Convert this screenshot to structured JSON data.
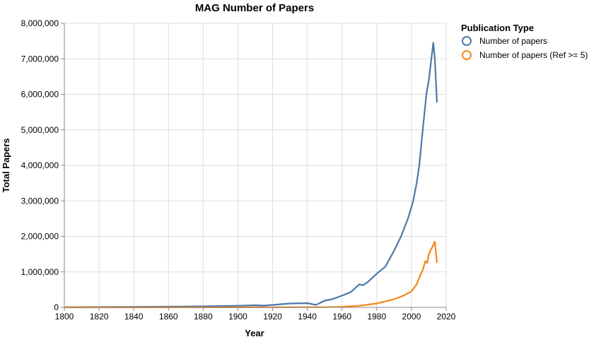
{
  "chart_data": {
    "type": "line",
    "title": "MAG Number of Papers",
    "xlabel": "Year",
    "ylabel": "Total Papers",
    "xlim": [
      1800,
      2020
    ],
    "ylim": [
      0,
      8000000
    ],
    "grid": true,
    "x_ticks": [
      "1800",
      "1820",
      "1840",
      "1860",
      "1880",
      "1900",
      "1920",
      "1940",
      "1960",
      "1980",
      "2000",
      "2020"
    ],
    "y_ticks": [
      "0",
      "1,000,000",
      "2,000,000",
      "3,000,000",
      "4,000,000",
      "5,000,000",
      "6,000,000",
      "7,000,000",
      "8,000,000"
    ],
    "legend": {
      "title": "Publication Type",
      "position": "right"
    },
    "series": [
      {
        "name": "Number of papers",
        "color": "#4c78a8",
        "x": [
          1800,
          1820,
          1840,
          1860,
          1880,
          1900,
          1910,
          1915,
          1920,
          1930,
          1940,
          1943,
          1945,
          1950,
          1955,
          1960,
          1965,
          1970,
          1972,
          1975,
          1980,
          1985,
          1990,
          1994,
          1998,
          2001,
          2003,
          2004.5,
          2006.5,
          2008,
          2008.6,
          2010,
          2011,
          2012.6,
          2013.5,
          2014.7
        ],
        "y": [
          5000,
          10000,
          15000,
          20000,
          30000,
          45000,
          60000,
          50000,
          70000,
          110000,
          120000,
          90000,
          70000,
          190000,
          240000,
          330000,
          430000,
          650000,
          620000,
          720000,
          950000,
          1150000,
          1600000,
          2000000,
          2500000,
          3000000,
          3500000,
          4000000,
          5000000,
          5700000,
          6000000,
          6400000,
          6800000,
          7450000,
          7000000,
          5770000
        ]
      },
      {
        "name": "Number of papers (Ref >= 5)",
        "color": "#f58518",
        "x": [
          1800,
          1900,
          1950,
          1960,
          1970,
          1980,
          1990,
          1995,
          2000,
          2003,
          2005,
          2006.5,
          2008,
          2009,
          2010,
          2011,
          2012,
          2013.5,
          2014.7
        ],
        "y": [
          0,
          2000,
          5000,
          15000,
          45000,
          110000,
          230000,
          320000,
          450000,
          650000,
          900000,
          1050000,
          1300000,
          1250000,
          1500000,
          1600000,
          1700000,
          1850000,
          1250000
        ]
      }
    ]
  }
}
